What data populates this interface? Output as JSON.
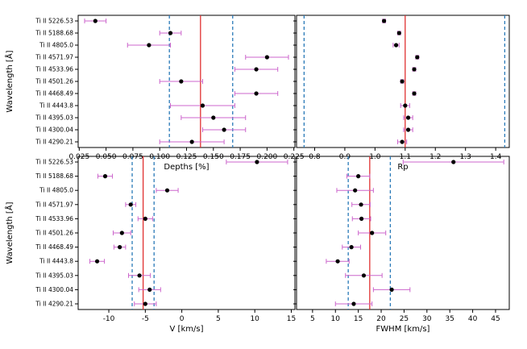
{
  "colors": {
    "errorbar": "#cc66cc",
    "point": "#000000",
    "mean_line": "#e03030",
    "std_line": "#2a7ab8"
  },
  "chart_data": [
    {
      "type": "scatter",
      "id": "depths",
      "xlabel": "Depths [%]",
      "ylabel": "Wavelength [Å]",
      "categories": [
        "Ti II 5226.53",
        "Ti II 5188.68",
        "Ti II 4805.0",
        "Ti II 4571.97",
        "Ti II 4533.96",
        "Ti II 4501.26",
        "Ti II 4468.49",
        "Ti II 4443.8",
        "Ti II 4395.03",
        "Ti II 4300.04",
        "Ti II 4290.21"
      ],
      "values": [
        0.04,
        0.11,
        0.09,
        0.2,
        0.19,
        0.12,
        0.19,
        0.14,
        0.15,
        0.16,
        0.13
      ],
      "errors": [
        0.01,
        0.01,
        0.02,
        0.02,
        0.02,
        0.02,
        0.02,
        0.03,
        0.03,
        0.02,
        0.03
      ],
      "mean": 0.138,
      "std_lines": [
        0.109,
        0.168
      ],
      "xlim": [
        0.024,
        0.226
      ],
      "xticks": [
        "0.025",
        "0.050",
        "0.075",
        "0.100",
        "0.125",
        "0.150",
        "0.175",
        "0.200",
        "0.225"
      ],
      "xtick_values": [
        0.025,
        0.05,
        0.075,
        0.1,
        0.125,
        0.15,
        0.175,
        0.2,
        0.225
      ]
    },
    {
      "type": "scatter",
      "id": "rp",
      "xlabel": "Rp",
      "ylabel": "",
      "categories": [
        "Ti II 5226.53",
        "Ti II 5188.68",
        "Ti II 4805.0",
        "Ti II 4571.97",
        "Ti II 4533.96",
        "Ti II 4501.26",
        "Ti II 4468.49",
        "Ti II 4443.8",
        "Ti II 4395.03",
        "Ti II 4300.04",
        "Ti II 4290.21"
      ],
      "values": [
        1.03,
        1.08,
        1.07,
        1.14,
        1.13,
        1.09,
        1.13,
        1.1,
        1.11,
        1.11,
        1.09
      ],
      "errors": [
        0.005,
        0.005,
        0.01,
        0.005,
        0.005,
        0.005,
        0.005,
        0.015,
        0.015,
        0.015,
        0.015
      ],
      "mean": 1.1,
      "std_lines": [
        0.765,
        1.43
      ],
      "xlim": [
        0.74,
        1.445
      ],
      "xticks": [
        "0.8",
        "0.9",
        "1.0",
        "1.1",
        "1.2",
        "1.3",
        "1.4"
      ],
      "xtick_values": [
        0.8,
        0.9,
        1.0,
        1.1,
        1.2,
        1.3,
        1.4
      ]
    },
    {
      "type": "scatter",
      "id": "velocity",
      "xlabel": "V [km/s]",
      "ylabel": "Wavelength [Å]",
      "categories": [
        "Ti II 5226.53",
        "Ti II 5188.68",
        "Ti II 4805.0",
        "Ti II 4571.97",
        "Ti II 4533.96",
        "Ti II 4501.26",
        "Ti II 4468.49",
        "Ti II 4443.8",
        "Ti II 4395.03",
        "Ti II 4300.04",
        "Ti II 4290.21"
      ],
      "values": [
        10.3,
        -10.5,
        -2.0,
        -7.0,
        -5.0,
        -8.2,
        -8.5,
        -11.6,
        -5.8,
        -4.4,
        -5.0
      ],
      "errors": [
        4.2,
        1.0,
        1.5,
        0.7,
        1.0,
        1.2,
        0.8,
        1.0,
        1.5,
        1.5,
        1.5
      ],
      "mean": -5.3,
      "std_lines": [
        -6.8,
        -3.8
      ],
      "xlim": [
        -14.2,
        15.5
      ],
      "xticks": [
        "-10",
        "-5",
        "0",
        "5",
        "10",
        "15"
      ],
      "xtick_values": [
        -10,
        -5,
        0,
        5,
        10,
        15
      ]
    },
    {
      "type": "scatter",
      "id": "fwhm",
      "xlabel": "FWHM [km/s]",
      "ylabel": "",
      "categories": [
        "Ti II 5226.53",
        "Ti II 5188.68",
        "Ti II 4805.0",
        "Ti II 4571.97",
        "Ti II 4533.96",
        "Ti II 4501.26",
        "Ti II 4468.49",
        "Ti II 4443.8",
        "Ti II 4395.03",
        "Ti II 4300.04",
        "Ti II 4290.21"
      ],
      "values": [
        35.8,
        15.0,
        14.3,
        15.6,
        15.7,
        18.0,
        13.5,
        10.5,
        16.2,
        22.3,
        14.0
      ],
      "errors": [
        11,
        2.5,
        4,
        2,
        2,
        3,
        2,
        2.5,
        4,
        4,
        4
      ],
      "mean": 17.5,
      "std_lines": [
        12.8,
        22.0
      ],
      "xlim": [
        1.5,
        48
      ],
      "xticks": [
        "5",
        "10",
        "15",
        "20",
        "25",
        "30",
        "35",
        "40",
        "45"
      ],
      "xtick_values": [
        5,
        10,
        15,
        20,
        25,
        30,
        35,
        40,
        45
      ]
    }
  ]
}
